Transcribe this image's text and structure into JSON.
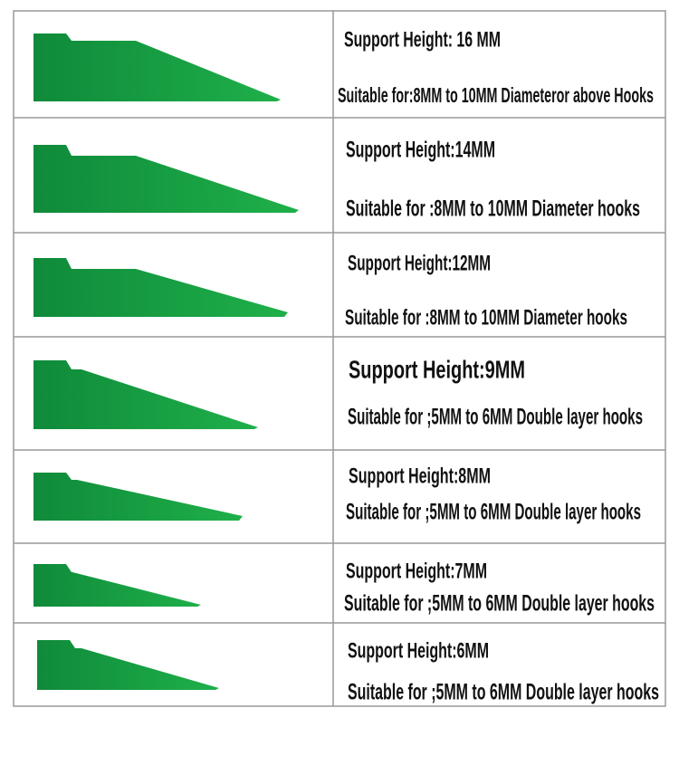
{
  "table": {
    "rows": [
      [
        "Support Height: 16 MM",
        "Suitable for:8MM to 10MM Diameteror above Hooks"
      ],
      [
        "Support Height:14MM",
        "Suitable for :8MM to 10MM Diameter hooks"
      ],
      [
        "Support Height:12MM",
        "Suitable for :8MM to 10MM Diameter hooks"
      ],
      [
        "Support Height:9MM",
        "Suitable for ;5MM to 6MM Double layer hooks"
      ],
      [
        "Support Height:8MM",
        "Suitable for ;5MM to 6MM Double layer hooks"
      ],
      [
        "Support Height:7MM",
        "Suitable for ;5MM to 6MM Double layer hooks"
      ],
      [
        "Support Height:6MM",
        "Suitable for ;5MM to 6MM Double layer hooks"
      ]
    ]
  }
}
